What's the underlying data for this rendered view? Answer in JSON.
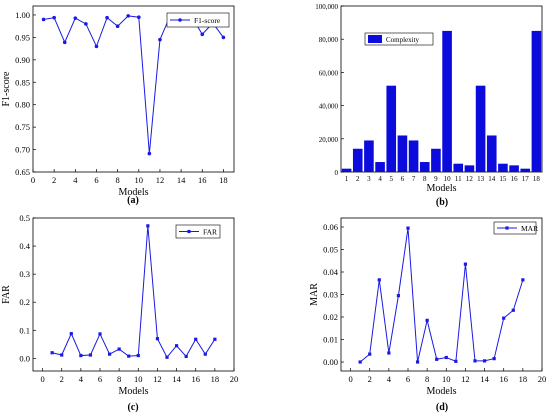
{
  "chart_data": [
    {
      "panel": "(a)",
      "type": "line",
      "xlabel": "Models",
      "ylabel": "F1-score",
      "xlim": [
        0,
        19
      ],
      "ylim": [
        0.65,
        1.02
      ],
      "x_ticks": [
        0,
        2,
        4,
        6,
        8,
        10,
        12,
        14,
        16,
        18
      ],
      "y_ticks": [
        0.65,
        0.7,
        0.75,
        0.8,
        0.85,
        0.9,
        0.95,
        1.0
      ],
      "y_tick_labels": [
        "0.65",
        "0.70",
        "0.75",
        "0.80",
        "0.85",
        "0.90",
        "0.95",
        "1.00"
      ],
      "legend_position": "top-right",
      "grid": false,
      "marker": "circle",
      "color": "#1a1ae6",
      "series": [
        {
          "name": "F1-score",
          "x": [
            1,
            2,
            3,
            4,
            5,
            6,
            7,
            8,
            9,
            10,
            11,
            12,
            13,
            14,
            15,
            16,
            17,
            18
          ],
          "values": [
            0.99,
            0.994,
            0.939,
            0.993,
            0.98,
            0.93,
            0.994,
            0.975,
            0.998,
            0.995,
            0.691,
            0.945,
            1.0,
            0.977,
            0.996,
            0.957,
            0.982,
            0.95
          ]
        }
      ]
    },
    {
      "panel": "(b)",
      "type": "bar",
      "xlabel": "Models",
      "ylabel": "",
      "ylim": [
        0,
        100000
      ],
      "y_ticks": [
        0,
        20000,
        40000,
        60000,
        80000,
        100000
      ],
      "y_tick_labels": [
        "0",
        "20,000",
        "40,000",
        "60,000",
        "80,000",
        "100,000"
      ],
      "legend_position": "top-left",
      "grid": false,
      "color": "#0b0bdc",
      "categories": [
        "1",
        "2",
        "3",
        "4",
        "5",
        "6",
        "7",
        "8",
        "9",
        "10",
        "11",
        "12",
        "13",
        "14",
        "15",
        "16",
        "17",
        "18"
      ],
      "series": [
        {
          "name": "Complexity",
          "values": [
            2000,
            14000,
            19000,
            6000,
            52000,
            22000,
            19000,
            6000,
            14000,
            85000,
            5000,
            4000,
            52000,
            22000,
            5000,
            4000,
            2000,
            85000
          ]
        }
      ]
    },
    {
      "panel": "(c)",
      "type": "line",
      "xlabel": "Models",
      "ylabel": "FAR",
      "xlim": [
        -1,
        20
      ],
      "ylim": [
        -0.045,
        0.5
      ],
      "x_ticks": [
        0,
        2,
        4,
        6,
        8,
        10,
        12,
        14,
        16,
        18,
        20
      ],
      "y_ticks": [
        0.0,
        0.1,
        0.2,
        0.3,
        0.4,
        0.5
      ],
      "y_tick_labels": [
        "0.0",
        "0.1",
        "0.2",
        "0.3",
        "0.4",
        "0.5"
      ],
      "legend_position": "top-right",
      "grid": false,
      "marker": "square",
      "color": "#1a1ae6",
      "series": [
        {
          "name": "FAR",
          "x": [
            1,
            2,
            3,
            4,
            5,
            6,
            7,
            8,
            9,
            10,
            11,
            12,
            13,
            14,
            15,
            16,
            17,
            18
          ],
          "values": [
            0.02,
            0.012,
            0.088,
            0.01,
            0.012,
            0.087,
            0.015,
            0.033,
            0.008,
            0.01,
            0.472,
            0.07,
            0.004,
            0.045,
            0.007,
            0.068,
            0.015,
            0.068
          ]
        }
      ]
    },
    {
      "panel": "(d)",
      "type": "line",
      "xlabel": "Models",
      "ylabel": "MAR",
      "xlim": [
        -1,
        20
      ],
      "ylim": [
        -0.004,
        0.064
      ],
      "x_ticks": [
        0,
        2,
        4,
        6,
        8,
        10,
        12,
        14,
        16,
        18,
        20
      ],
      "y_ticks": [
        0.0,
        0.01,
        0.02,
        0.03,
        0.04,
        0.05,
        0.06
      ],
      "y_tick_labels": [
        "0.00",
        "0.01",
        "0.02",
        "0.03",
        "0.04",
        "0.05",
        "0.06"
      ],
      "legend_position": "top-right",
      "grid": false,
      "marker": "square",
      "color": "#1a1ae6",
      "series": [
        {
          "name": "MAR",
          "x": [
            1,
            2,
            3,
            4,
            5,
            6,
            7,
            8,
            9,
            10,
            11,
            12,
            13,
            14,
            15,
            16,
            17,
            18
          ],
          "values": [
            0.0,
            0.0035,
            0.0365,
            0.004,
            0.0295,
            0.0595,
            0.0,
            0.0185,
            0.0012,
            0.002,
            0.0003,
            0.0435,
            0.0005,
            0.0005,
            0.0015,
            0.0195,
            0.023,
            0.0365
          ]
        }
      ]
    }
  ]
}
